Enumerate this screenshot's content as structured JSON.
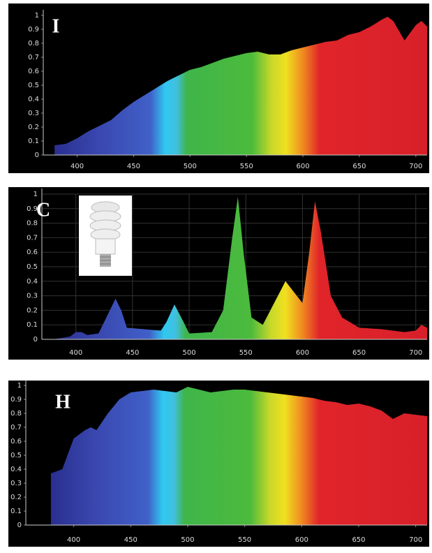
{
  "chart_data": [
    {
      "type": "area",
      "title": "I",
      "grid": false,
      "xlim": [
        370,
        710
      ],
      "ylim": [
        0,
        1
      ],
      "xticks": [
        400,
        450,
        500,
        550,
        600,
        650,
        700
      ],
      "yticks": [
        0,
        0.1,
        0.2,
        0.3,
        0.4,
        0.5,
        0.6,
        0.7,
        0.8,
        0.9,
        1
      ],
      "x": [
        380,
        390,
        400,
        410,
        420,
        430,
        440,
        450,
        460,
        470,
        480,
        490,
        500,
        510,
        520,
        530,
        540,
        550,
        560,
        570,
        580,
        590,
        600,
        610,
        620,
        630,
        640,
        650,
        660,
        670,
        675,
        680,
        690,
        700,
        705,
        710
      ],
      "values": [
        0.07,
        0.08,
        0.12,
        0.17,
        0.21,
        0.25,
        0.32,
        0.38,
        0.43,
        0.48,
        0.53,
        0.57,
        0.61,
        0.63,
        0.66,
        0.69,
        0.71,
        0.73,
        0.74,
        0.72,
        0.72,
        0.75,
        0.77,
        0.79,
        0.81,
        0.82,
        0.86,
        0.88,
        0.92,
        0.97,
        0.99,
        0.96,
        0.82,
        0.93,
        0.96,
        0.92
      ]
    },
    {
      "type": "area",
      "title": "C",
      "grid": true,
      "xlim": [
        370,
        710
      ],
      "ylim": [
        0,
        1
      ],
      "xticks": [
        400,
        450,
        500,
        550,
        600,
        650,
        700
      ],
      "yticks": [
        0,
        0.1,
        0.2,
        0.3,
        0.4,
        0.5,
        0.6,
        0.7,
        0.8,
        0.9,
        1
      ],
      "x": [
        380,
        395,
        400,
        405,
        410,
        420,
        430,
        435,
        440,
        445,
        460,
        475,
        480,
        487,
        495,
        500,
        520,
        530,
        538,
        543,
        548,
        555,
        565,
        575,
        585,
        595,
        600,
        606,
        611,
        616,
        625,
        635,
        650,
        670,
        690,
        700,
        705,
        710
      ],
      "values": [
        0,
        0.02,
        0.05,
        0.05,
        0.03,
        0.04,
        0.2,
        0.28,
        0.2,
        0.08,
        0.07,
        0.06,
        0.12,
        0.24,
        0.12,
        0.04,
        0.05,
        0.2,
        0.7,
        0.98,
        0.6,
        0.15,
        0.1,
        0.25,
        0.4,
        0.3,
        0.25,
        0.6,
        0.95,
        0.75,
        0.3,
        0.15,
        0.08,
        0.07,
        0.05,
        0.06,
        0.1,
        0.08
      ]
    },
    {
      "type": "area",
      "title": "H",
      "grid": false,
      "xlim": [
        358,
        710
      ],
      "ylim": [
        0,
        1
      ],
      "xticks": [
        400,
        450,
        500,
        550,
        600,
        650,
        700
      ],
      "yticks": [
        0,
        0.1,
        0.2,
        0.3,
        0.4,
        0.5,
        0.6,
        0.7,
        0.8,
        0.9,
        1
      ],
      "x": [
        380,
        390,
        400,
        410,
        415,
        420,
        430,
        440,
        450,
        460,
        470,
        480,
        490,
        500,
        510,
        520,
        530,
        540,
        550,
        560,
        570,
        580,
        590,
        600,
        610,
        620,
        630,
        640,
        650,
        660,
        670,
        680,
        690,
        700,
        710
      ],
      "values": [
        0.37,
        0.4,
        0.62,
        0.68,
        0.7,
        0.68,
        0.8,
        0.9,
        0.95,
        0.96,
        0.97,
        0.96,
        0.95,
        0.99,
        0.97,
        0.95,
        0.96,
        0.97,
        0.97,
        0.96,
        0.95,
        0.94,
        0.93,
        0.92,
        0.91,
        0.89,
        0.88,
        0.86,
        0.87,
        0.85,
        0.82,
        0.76,
        0.8,
        0.79,
        0.78
      ]
    }
  ]
}
